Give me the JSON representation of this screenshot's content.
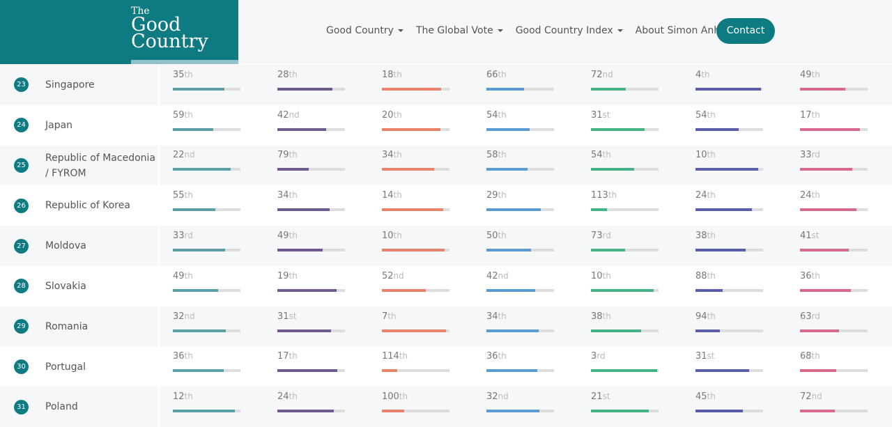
{
  "header": {
    "logo": [
      "The",
      "Good",
      "Country"
    ],
    "nav": [
      {
        "label": "Good Country",
        "dropdown": true
      },
      {
        "label": "The Global Vote",
        "dropdown": true
      },
      {
        "label": "Good Country Index",
        "dropdown": true
      },
      {
        "label": "About Simon Anholt",
        "dropdown": false
      }
    ],
    "contact": "Contact"
  },
  "table": {
    "column_colors": [
      "#5b9ea6",
      "#6e5a8c",
      "#e8826a",
      "#5b9bd2",
      "#46b386",
      "#5a5ea8",
      "#d9698b"
    ],
    "rows": [
      {
        "rank": 23,
        "country": "Singapore",
        "scores": [
          [
            35,
            "th"
          ],
          [
            28,
            "th"
          ],
          [
            18,
            "th"
          ],
          [
            66,
            "th"
          ],
          [
            72,
            "nd"
          ],
          [
            4,
            "th"
          ],
          [
            49,
            "th"
          ]
        ]
      },
      {
        "rank": 24,
        "country": "Japan",
        "scores": [
          [
            59,
            "th"
          ],
          [
            42,
            "nd"
          ],
          [
            20,
            "th"
          ],
          [
            54,
            "th"
          ],
          [
            31,
            "st"
          ],
          [
            54,
            "th"
          ],
          [
            17,
            "th"
          ]
        ]
      },
      {
        "rank": 25,
        "country": "Republic of Macedonia / FYROM",
        "scores": [
          [
            22,
            "nd"
          ],
          [
            79,
            "th"
          ],
          [
            34,
            "th"
          ],
          [
            58,
            "th"
          ],
          [
            54,
            "th"
          ],
          [
            10,
            "th"
          ],
          [
            33,
            "rd"
          ]
        ]
      },
      {
        "rank": 26,
        "country": "Republic of Korea",
        "scores": [
          [
            55,
            "th"
          ],
          [
            34,
            "th"
          ],
          [
            14,
            "th"
          ],
          [
            29,
            "th"
          ],
          [
            113,
            "th"
          ],
          [
            24,
            "th"
          ],
          [
            24,
            "th"
          ]
        ]
      },
      {
        "rank": 27,
        "country": "Moldova",
        "scores": [
          [
            33,
            "rd"
          ],
          [
            49,
            "th"
          ],
          [
            10,
            "th"
          ],
          [
            50,
            "th"
          ],
          [
            73,
            "rd"
          ],
          [
            38,
            "th"
          ],
          [
            41,
            "st"
          ]
        ]
      },
      {
        "rank": 28,
        "country": "Slovakia",
        "scores": [
          [
            49,
            "th"
          ],
          [
            19,
            "th"
          ],
          [
            52,
            "nd"
          ],
          [
            42,
            "nd"
          ],
          [
            10,
            "th"
          ],
          [
            88,
            "th"
          ],
          [
            36,
            "th"
          ]
        ]
      },
      {
        "rank": 29,
        "country": "Romania",
        "scores": [
          [
            32,
            "nd"
          ],
          [
            31,
            "st"
          ],
          [
            7,
            "th"
          ],
          [
            34,
            "th"
          ],
          [
            38,
            "th"
          ],
          [
            94,
            "th"
          ],
          [
            63,
            "rd"
          ]
        ]
      },
      {
        "rank": 30,
        "country": "Portugal",
        "scores": [
          [
            36,
            "th"
          ],
          [
            17,
            "th"
          ],
          [
            114,
            "th"
          ],
          [
            36,
            "th"
          ],
          [
            3,
            "rd"
          ],
          [
            31,
            "st"
          ],
          [
            68,
            "th"
          ]
        ]
      },
      {
        "rank": 31,
        "country": "Poland",
        "scores": [
          [
            12,
            "th"
          ],
          [
            24,
            "th"
          ],
          [
            100,
            "th"
          ],
          [
            32,
            "nd"
          ],
          [
            21,
            "st"
          ],
          [
            45,
            "th"
          ],
          [
            72,
            "nd"
          ]
        ]
      }
    ]
  }
}
